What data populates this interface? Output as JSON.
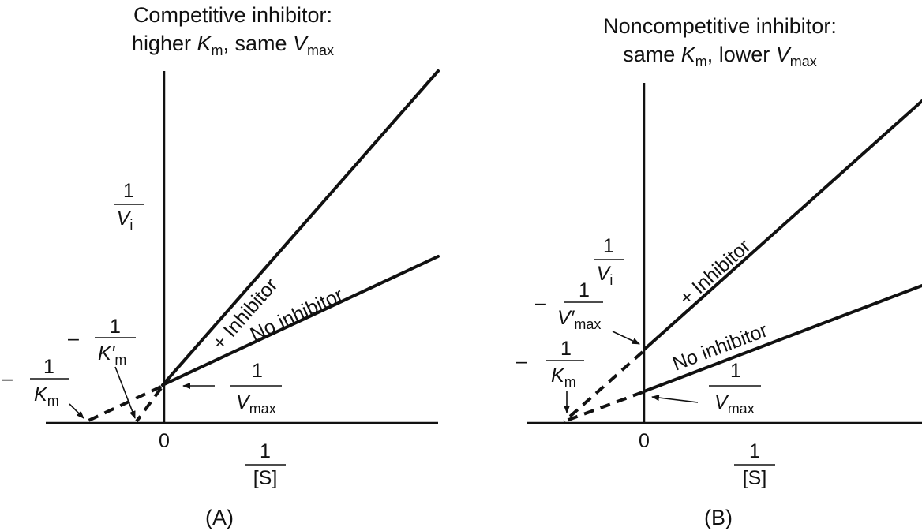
{
  "panel_a": {
    "title_line1": "Competitive inhibitor:",
    "title_prefix": "higher ",
    "title_k": "K",
    "title_k_sub": "m",
    "title_mid": ", same ",
    "title_v": "V",
    "title_v_sub": "max",
    "line_inhibitor": "+ Inhibitor",
    "line_no_inhibitor": "No inhibitor",
    "y_axis": {
      "num": "1",
      "den": "V",
      "den_sub": "i"
    },
    "x_axis": {
      "num": "1",
      "den": "[S]"
    },
    "origin": "0",
    "label_neg_km": {
      "minus": "–",
      "num": "1",
      "den": "K",
      "den_sub": "m"
    },
    "label_neg_kpm": {
      "minus": "–",
      "num": "1",
      "den": "K′",
      "den_sub": "m"
    },
    "label_vmax": {
      "num": "1",
      "den": "V",
      "den_sub": "max"
    },
    "caption": "(A)"
  },
  "panel_b": {
    "title_line1": "Noncompetitive inhibitor:",
    "title_prefix": "same ",
    "title_k": "K",
    "title_k_sub": "m",
    "title_mid": ", lower ",
    "title_v": "V",
    "title_v_sub": "max",
    "line_inhibitor": "+ Inhibitor",
    "line_no_inhibitor": "No inhibitor",
    "y_axis": {
      "num": "1",
      "den": "V",
      "den_sub": "i"
    },
    "x_axis": {
      "num": "1",
      "den": "[S]"
    },
    "origin": "0",
    "label_neg_vpmax": {
      "minus": "–",
      "num": "1",
      "den": "V′",
      "den_sub": "max"
    },
    "label_neg_km": {
      "minus": "–",
      "num": "1",
      "den": "K",
      "den_sub": "m"
    },
    "label_vmax": {
      "num": "1",
      "den": "V",
      "den_sub": "max"
    },
    "caption": "(B)"
  }
}
